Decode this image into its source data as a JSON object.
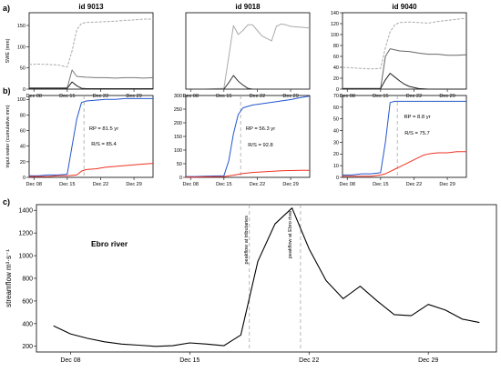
{
  "figure": {
    "panel_labels": [
      "a)",
      "b)",
      "c)"
    ]
  },
  "chart_data": [
    {
      "type": "line",
      "panel": "a",
      "title": "id 9013",
      "ylabel": "SWE (mm)",
      "ylim": [
        0,
        180
      ],
      "yticks": [
        0,
        50,
        100,
        150
      ],
      "x_dates": [
        "Dec 08",
        "Dec 15",
        "Dec 22",
        "Dec 29"
      ],
      "x_index": [
        1,
        8,
        15,
        22
      ],
      "xlim": [
        0,
        26
      ],
      "series": [
        {
          "color": "#aaaaaa",
          "dashed": true,
          "x": [
            0,
            2,
            4,
            6,
            8,
            9,
            10,
            11,
            12,
            14,
            16,
            18,
            20,
            22,
            24,
            26
          ],
          "y": [
            58,
            59,
            58,
            57,
            52,
            90,
            140,
            155,
            157,
            158,
            159,
            160,
            162,
            163,
            165,
            165
          ]
        },
        {
          "color": "#777777",
          "dashed": false,
          "x": [
            0,
            4,
            8,
            9,
            10,
            12,
            14,
            16,
            18,
            20,
            22,
            24,
            26
          ],
          "y": [
            3,
            3,
            3,
            45,
            30,
            28,
            27,
            27,
            26,
            27,
            27,
            26,
            27
          ]
        },
        {
          "color": "#222222",
          "dashed": false,
          "x": [
            0,
            4,
            8,
            9,
            10,
            11,
            12,
            14,
            16,
            20,
            26
          ],
          "y": [
            2,
            2,
            2,
            17,
            8,
            2,
            1,
            1,
            1,
            1,
            1
          ]
        }
      ]
    },
    {
      "type": "line",
      "panel": "a",
      "title": "id 9018",
      "ylim": [
        0,
        95
      ],
      "yticks": [],
      "x_dates": [
        "Dec 08",
        "Dec 15",
        "Dec 22",
        "Dec 29"
      ],
      "x_index": [
        1,
        8,
        15,
        22
      ],
      "xlim": [
        0,
        26
      ],
      "series": [
        {
          "color": "#aaaaaa",
          "dashed": false,
          "x": [
            0,
            4,
            8,
            9,
            10,
            11,
            12,
            13,
            14,
            15,
            16,
            17,
            18,
            19,
            20,
            21,
            22,
            24,
            26
          ],
          "y": [
            0,
            0,
            1,
            40,
            79,
            68,
            73,
            80,
            80,
            73,
            66,
            63,
            60,
            78,
            81,
            80,
            78,
            77,
            76
          ]
        },
        {
          "color": "#333333",
          "dashed": false,
          "x": [
            0,
            8,
            9,
            10,
            11,
            12,
            13,
            14,
            20,
            26
          ],
          "y": [
            0,
            0,
            8,
            17,
            10,
            5,
            1,
            0,
            0,
            0
          ]
        }
      ]
    },
    {
      "type": "line",
      "panel": "a",
      "title": "id 9040",
      "ylim": [
        0,
        140
      ],
      "yticks": [
        0,
        20,
        40,
        60,
        80,
        100,
        120,
        140
      ],
      "x_dates": [
        "Dec 08",
        "Dec 15",
        "Dec 22",
        "Dec 29"
      ],
      "x_index": [
        1,
        8,
        15,
        22
      ],
      "xlim": [
        0,
        26
      ],
      "series": [
        {
          "color": "#aaaaaa",
          "dashed": true,
          "x": [
            0,
            2,
            4,
            6,
            8,
            9,
            10,
            11,
            12,
            14,
            16,
            18,
            20,
            22,
            24,
            26
          ],
          "y": [
            40,
            39,
            38,
            37,
            38,
            76,
            105,
            118,
            122,
            123,
            122,
            121,
            124,
            126,
            128,
            130
          ]
        },
        {
          "color": "#666666",
          "dashed": false,
          "x": [
            0,
            4,
            8,
            9,
            10,
            12,
            14,
            16,
            18,
            20,
            22,
            24,
            26
          ],
          "y": [
            1,
            1,
            1,
            60,
            74,
            70,
            69,
            66,
            64,
            64,
            62,
            62,
            63
          ]
        },
        {
          "color": "#222222",
          "dashed": false,
          "x": [
            0,
            4,
            8,
            9,
            10,
            11,
            12,
            13,
            14,
            15,
            16,
            18,
            20,
            26
          ],
          "y": [
            1,
            1,
            1,
            17,
            29,
            22,
            15,
            9,
            5,
            3,
            1,
            0,
            0,
            0
          ]
        }
      ]
    },
    {
      "type": "line",
      "panel": "b",
      "ylabel": "input water (cumulative mm)",
      "ylim": [
        0,
        105
      ],
      "yticks": [
        0,
        20,
        40,
        60,
        80,
        100
      ],
      "x_dates": [
        "Dec 08",
        "Dec 15",
        "Dec 22",
        "Dec 29"
      ],
      "x_index": [
        1,
        8,
        15,
        22
      ],
      "xlim": [
        0,
        26
      ],
      "vline": 11.5,
      "annotations": [
        "RP = 81.5 yr",
        "R/S = 85.4"
      ],
      "series": [
        {
          "color": "#2255cc",
          "x": [
            0,
            2,
            4,
            6,
            8,
            9,
            10,
            11,
            12,
            14,
            16,
            18,
            20,
            22,
            24,
            26
          ],
          "y": [
            2,
            2,
            3,
            3,
            4,
            40,
            75,
            96,
            98,
            99,
            100,
            100,
            101,
            101,
            101,
            101
          ]
        },
        {
          "color": "#ee3322",
          "x": [
            0,
            2,
            4,
            6,
            8,
            10,
            11,
            12,
            14,
            16,
            18,
            20,
            22,
            24,
            26
          ],
          "y": [
            1,
            1,
            1,
            2,
            2,
            3,
            8,
            10,
            11,
            13,
            14,
            15,
            16,
            17,
            18
          ]
        }
      ]
    },
    {
      "type": "line",
      "panel": "b",
      "ylim": [
        0,
        300
      ],
      "yticks": [
        0,
        50,
        100,
        150,
        200,
        250,
        300
      ],
      "x_dates": [
        "Dec 08",
        "Dec 15",
        "Dec 22",
        "Dec 29"
      ],
      "x_index": [
        1,
        8,
        15,
        22
      ],
      "xlim": [
        0,
        26
      ],
      "vline": 11.5,
      "annotations": [
        "RP = 56.3 yr",
        "R/S = 92.8"
      ],
      "series": [
        {
          "color": "#2255cc",
          "x": [
            0,
            2,
            4,
            6,
            8,
            9,
            10,
            11,
            12,
            14,
            16,
            18,
            20,
            22,
            24,
            26
          ],
          "y": [
            3,
            3,
            4,
            5,
            6,
            60,
            160,
            230,
            255,
            265,
            270,
            275,
            280,
            285,
            292,
            298
          ]
        },
        {
          "color": "#ee3322",
          "x": [
            0,
            2,
            4,
            6,
            8,
            10,
            12,
            14,
            16,
            18,
            20,
            22,
            24,
            26
          ],
          "y": [
            1,
            1,
            2,
            2,
            3,
            8,
            14,
            18,
            20,
            22,
            24,
            25,
            26,
            26
          ]
        }
      ]
    },
    {
      "type": "line",
      "panel": "b",
      "ylim": [
        0,
        70
      ],
      "yticks": [
        0,
        10,
        20,
        30,
        40,
        50,
        60,
        70
      ],
      "x_dates": [
        "Dec 08",
        "Dec 15",
        "Dec 22",
        "Dec 29"
      ],
      "x_index": [
        1,
        8,
        15,
        22
      ],
      "xlim": [
        0,
        26
      ],
      "vline": 11.5,
      "annotations": [
        "RP = 8.8 yr",
        "R/S = 75.7"
      ],
      "series": [
        {
          "color": "#2255cc",
          "x": [
            0,
            2,
            4,
            6,
            8,
            9,
            10,
            11,
            12,
            14,
            16,
            18,
            20,
            22,
            24,
            26
          ],
          "y": [
            2,
            2,
            3,
            3,
            4,
            30,
            64,
            65,
            65,
            65,
            65,
            65,
            65,
            65,
            65,
            65
          ]
        },
        {
          "color": "#ee3322",
          "x": [
            0,
            2,
            4,
            6,
            8,
            9,
            10,
            11,
            12,
            13,
            14,
            15,
            16,
            17,
            18,
            20,
            22,
            24,
            26
          ],
          "y": [
            1,
            1,
            1,
            1,
            2,
            3,
            5,
            7,
            9,
            11,
            13,
            15,
            17,
            19,
            20,
            21,
            21,
            22,
            22
          ]
        }
      ]
    },
    {
      "type": "line",
      "panel": "c",
      "ylabel": "streamflow m³·s⁻¹",
      "ylim": [
        150,
        1450
      ],
      "yticks": [
        200,
        400,
        600,
        800,
        1000,
        1200,
        1400
      ],
      "x_dates": [
        "Dec 08",
        "Dec 15",
        "Dec 22",
        "Dec 29"
      ],
      "x_index": [
        1,
        8,
        15,
        22
      ],
      "xlim": [
        -1,
        26
      ],
      "annotations": [
        "Ebro river",
        "peakflow at tributaries",
        "peakflow at Ebro river"
      ],
      "vlines": [
        11.5,
        14.5
      ],
      "series": [
        {
          "color": "#000000",
          "x": [
            0,
            1,
            2,
            3,
            4,
            5,
            6,
            7,
            8,
            9,
            10,
            11,
            12,
            13,
            14,
            15,
            16,
            17,
            18,
            19,
            20,
            21,
            22,
            23,
            24,
            25
          ],
          "y": [
            380,
            310,
            270,
            240,
            220,
            210,
            200,
            205,
            230,
            220,
            205,
            300,
            950,
            1280,
            1420,
            1060,
            780,
            620,
            730,
            600,
            480,
            470,
            570,
            520,
            440,
            410
          ]
        }
      ]
    }
  ]
}
